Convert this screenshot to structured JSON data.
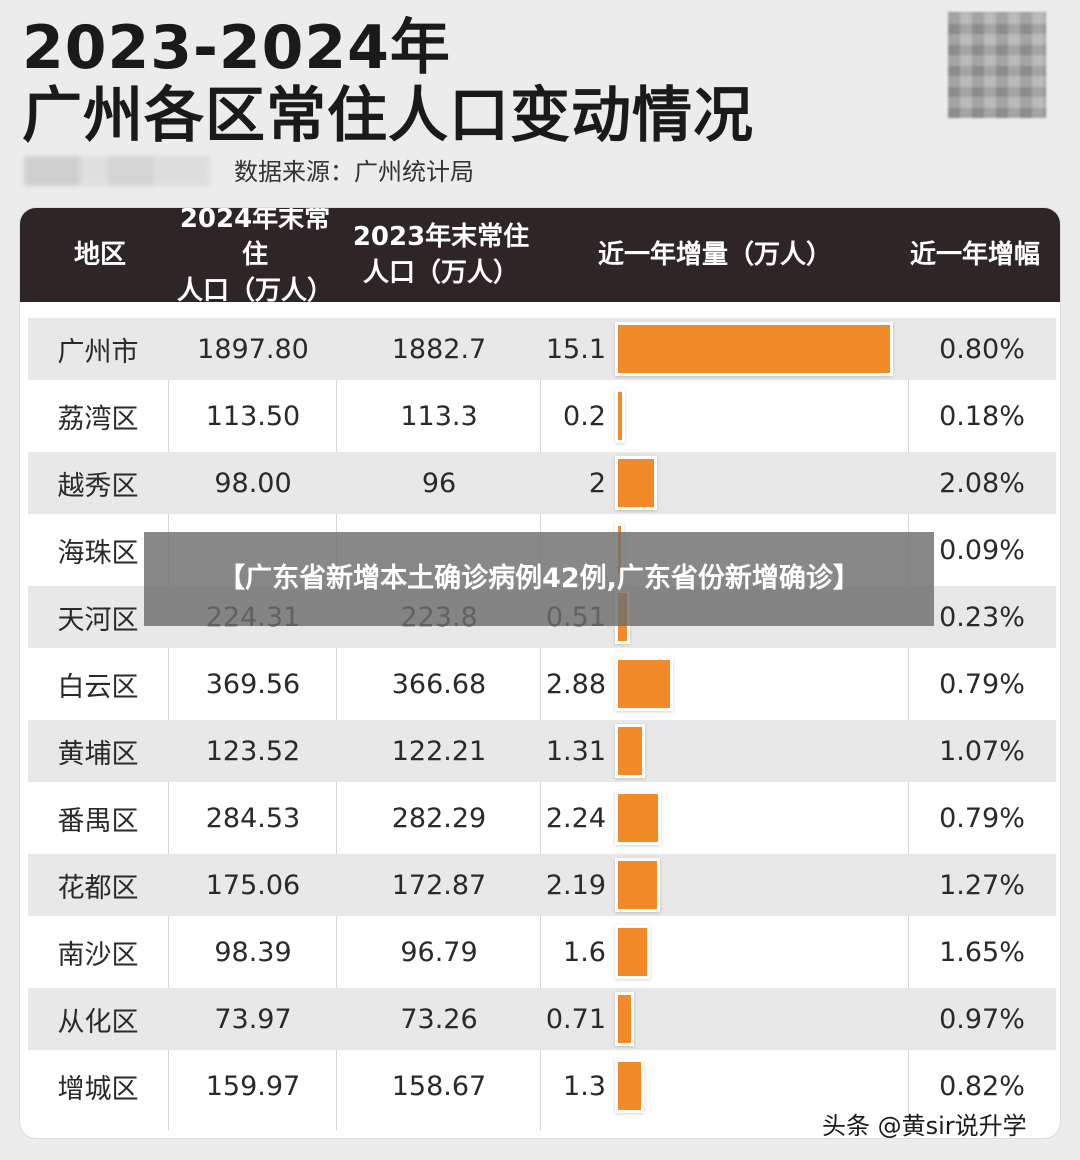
{
  "title_line1": "2023-2024年",
  "title_line2": "广州各区常住人口变动情况",
  "source": "数据来源：广州统计局",
  "overlay_text": "【广东省新增本土确诊病例42例,广东省份新增确诊】",
  "watermark": "头条 @黄sir说升学",
  "colors": {
    "header_bg": "#2d2526",
    "bar": "#f28a2a",
    "row_shade": "#e8e8e8"
  },
  "chart_data": {
    "type": "table",
    "columns": [
      "地区",
      "2024年末常住\n人口（万人）",
      "2023年末常住\n人口（万人）",
      "近一年增量（万人）",
      "近一年增幅"
    ],
    "bar_max": 15.1,
    "rows": [
      {
        "region": "广州市",
        "pop2024": "1897.80",
        "pop2023": "1882.7",
        "delta_label": "15.1",
        "delta": 15.1,
        "rate": "0.80%"
      },
      {
        "region": "荔湾区",
        "pop2024": "113.50",
        "pop2023": "113.3",
        "delta_label": "0.2",
        "delta": 0.2,
        "rate": "0.18%"
      },
      {
        "region": "越秀区",
        "pop2024": "98.00",
        "pop2023": "96",
        "delta_label": "2",
        "delta": 2,
        "rate": "2.08%"
      },
      {
        "region": "海珠区",
        "pop2024": "",
        "pop2023": "",
        "delta_label": "",
        "delta": 0.16,
        "rate": "0.09%"
      },
      {
        "region": "天河区",
        "pop2024": "224.31",
        "pop2023": "223.8",
        "delta_label": "0.51",
        "delta": 0.51,
        "rate": "0.23%"
      },
      {
        "region": "白云区",
        "pop2024": "369.56",
        "pop2023": "366.68",
        "delta_label": "2.88",
        "delta": 2.88,
        "rate": "0.79%"
      },
      {
        "region": "黄埔区",
        "pop2024": "123.52",
        "pop2023": "122.21",
        "delta_label": "1.31",
        "delta": 1.31,
        "rate": "1.07%"
      },
      {
        "region": "番禺区",
        "pop2024": "284.53",
        "pop2023": "282.29",
        "delta_label": "2.24",
        "delta": 2.24,
        "rate": "0.79%"
      },
      {
        "region": "花都区",
        "pop2024": "175.06",
        "pop2023": "172.87",
        "delta_label": "2.19",
        "delta": 2.19,
        "rate": "1.27%"
      },
      {
        "region": "南沙区",
        "pop2024": "98.39",
        "pop2023": "96.79",
        "delta_label": "1.6",
        "delta": 1.6,
        "rate": "1.65%"
      },
      {
        "region": "从化区",
        "pop2024": "73.97",
        "pop2023": "73.26",
        "delta_label": "0.71",
        "delta": 0.71,
        "rate": "0.97%"
      },
      {
        "region": "增城区",
        "pop2024": "159.97",
        "pop2023": "158.67",
        "delta_label": "1.3",
        "delta": 1.3,
        "rate": "0.82%"
      }
    ]
  }
}
